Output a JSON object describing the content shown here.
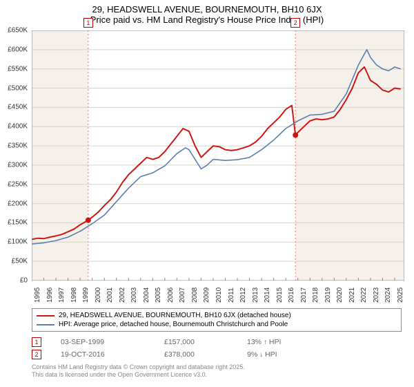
{
  "title": {
    "line1": "29, HEADSWELL AVENUE, BOURNEMOUTH, BH10 6JX",
    "line2": "Price paid vs. HM Land Registry's House Price Index (HPI)",
    "fontsize": 13
  },
  "chart": {
    "type": "line",
    "background_color": "#f5f0ea",
    "inner_background_color": "#ffffff",
    "axis_color": "#888888",
    "grid_color": "#d9d2c8",
    "vline_color": "#ff7070",
    "vline_dash": "2,3",
    "marker_fill": "#c91414",
    "marker_border": "#c00000",
    "xlim": [
      1995,
      2025.8
    ],
    "ylim": [
      0,
      650000
    ],
    "ytick_step": 50000,
    "yticks": [
      "£0",
      "£50K",
      "£100K",
      "£150K",
      "£200K",
      "£250K",
      "£300K",
      "£350K",
      "£400K",
      "£450K",
      "£500K",
      "£550K",
      "£600K",
      "£650K"
    ],
    "xticks": [
      1995,
      1996,
      1997,
      1998,
      1999,
      2000,
      2001,
      2002,
      2003,
      2004,
      2005,
      2006,
      2007,
      2008,
      2009,
      2010,
      2011,
      2012,
      2013,
      2014,
      2015,
      2016,
      2017,
      2018,
      2019,
      2020,
      2021,
      2022,
      2023,
      2024,
      2025
    ],
    "series": [
      {
        "name": "property",
        "label": "29, HEADSWELL AVENUE, BOURNEMOUTH, BH10 6JX (detached house)",
        "color": "#d11414",
        "line_width": 2,
        "points": [
          [
            1995.0,
            107000
          ],
          [
            1995.5,
            110000
          ],
          [
            1996.0,
            109000
          ],
          [
            1996.5,
            113000
          ],
          [
            1997.0,
            116000
          ],
          [
            1997.5,
            120000
          ],
          [
            1998.0,
            127000
          ],
          [
            1998.5,
            134000
          ],
          [
            1999.0,
            145000
          ],
          [
            1999.67,
            157000
          ],
          [
            2000.0,
            165000
          ],
          [
            2000.5,
            178000
          ],
          [
            2001.0,
            195000
          ],
          [
            2001.5,
            210000
          ],
          [
            2002.0,
            230000
          ],
          [
            2002.5,
            255000
          ],
          [
            2003.0,
            275000
          ],
          [
            2003.5,
            290000
          ],
          [
            2004.0,
            305000
          ],
          [
            2004.5,
            320000
          ],
          [
            2005.0,
            315000
          ],
          [
            2005.5,
            320000
          ],
          [
            2006.0,
            335000
          ],
          [
            2006.5,
            355000
          ],
          [
            2007.0,
            375000
          ],
          [
            2007.5,
            395000
          ],
          [
            2008.0,
            388000
          ],
          [
            2008.5,
            350000
          ],
          [
            2009.0,
            320000
          ],
          [
            2009.5,
            335000
          ],
          [
            2010.0,
            350000
          ],
          [
            2010.5,
            348000
          ],
          [
            2011.0,
            340000
          ],
          [
            2011.5,
            338000
          ],
          [
            2012.0,
            340000
          ],
          [
            2012.5,
            345000
          ],
          [
            2013.0,
            350000
          ],
          [
            2013.5,
            360000
          ],
          [
            2014.0,
            375000
          ],
          [
            2014.5,
            395000
          ],
          [
            2015.0,
            410000
          ],
          [
            2015.5,
            425000
          ],
          [
            2016.0,
            445000
          ],
          [
            2016.5,
            455000
          ],
          [
            2016.8,
            378000
          ],
          [
            2017.0,
            385000
          ],
          [
            2017.5,
            400000
          ],
          [
            2018.0,
            415000
          ],
          [
            2018.5,
            420000
          ],
          [
            2019.0,
            418000
          ],
          [
            2019.5,
            420000
          ],
          [
            2020.0,
            425000
          ],
          [
            2020.5,
            445000
          ],
          [
            2021.0,
            470000
          ],
          [
            2021.5,
            500000
          ],
          [
            2022.0,
            540000
          ],
          [
            2022.5,
            555000
          ],
          [
            2023.0,
            520000
          ],
          [
            2023.5,
            510000
          ],
          [
            2024.0,
            495000
          ],
          [
            2024.5,
            490000
          ],
          [
            2025.0,
            500000
          ],
          [
            2025.5,
            498000
          ]
        ]
      },
      {
        "name": "hpi",
        "label": "HPI: Average price, detached house, Bournemouth Christchurch and Poole",
        "color": "#5b7fad",
        "line_width": 1.6,
        "points": [
          [
            1995.0,
            95000
          ],
          [
            1996.0,
            98000
          ],
          [
            1997.0,
            104000
          ],
          [
            1998.0,
            113000
          ],
          [
            1999.0,
            128000
          ],
          [
            2000.0,
            148000
          ],
          [
            2001.0,
            170000
          ],
          [
            2002.0,
            205000
          ],
          [
            2003.0,
            240000
          ],
          [
            2004.0,
            270000
          ],
          [
            2005.0,
            280000
          ],
          [
            2006.0,
            298000
          ],
          [
            2007.0,
            330000
          ],
          [
            2007.7,
            345000
          ],
          [
            2008.0,
            340000
          ],
          [
            2008.5,
            315000
          ],
          [
            2009.0,
            290000
          ],
          [
            2009.5,
            300000
          ],
          [
            2010.0,
            315000
          ],
          [
            2011.0,
            312000
          ],
          [
            2012.0,
            314000
          ],
          [
            2013.0,
            320000
          ],
          [
            2014.0,
            340000
          ],
          [
            2015.0,
            365000
          ],
          [
            2016.0,
            395000
          ],
          [
            2017.0,
            415000
          ],
          [
            2018.0,
            430000
          ],
          [
            2019.0,
            432000
          ],
          [
            2020.0,
            440000
          ],
          [
            2021.0,
            485000
          ],
          [
            2022.0,
            560000
          ],
          [
            2022.7,
            600000
          ],
          [
            2023.0,
            580000
          ],
          [
            2023.5,
            560000
          ],
          [
            2024.0,
            550000
          ],
          [
            2024.5,
            545000
          ],
          [
            2025.0,
            555000
          ],
          [
            2025.5,
            550000
          ]
        ]
      }
    ],
    "sale_markers": [
      {
        "n": "1",
        "x": 1999.67,
        "y": 157000
      },
      {
        "n": "2",
        "x": 2016.8,
        "y": 378000
      }
    ]
  },
  "legend": {
    "border_color": "#888888"
  },
  "sales": [
    {
      "n": "1",
      "date": "03-SEP-1999",
      "price": "£157,000",
      "hpi_pct": "13%",
      "hpi_dir": "up",
      "hpi_label": "HPI"
    },
    {
      "n": "2",
      "date": "19-OCT-2016",
      "price": "£378,000",
      "hpi_pct": "9%",
      "hpi_dir": "down",
      "hpi_label": "HPI"
    }
  ],
  "footer": {
    "line1": "Contains HM Land Registry data © Crown copyright and database right 2025.",
    "line2": "This data is licensed under the Open Government Licence v3.0."
  }
}
